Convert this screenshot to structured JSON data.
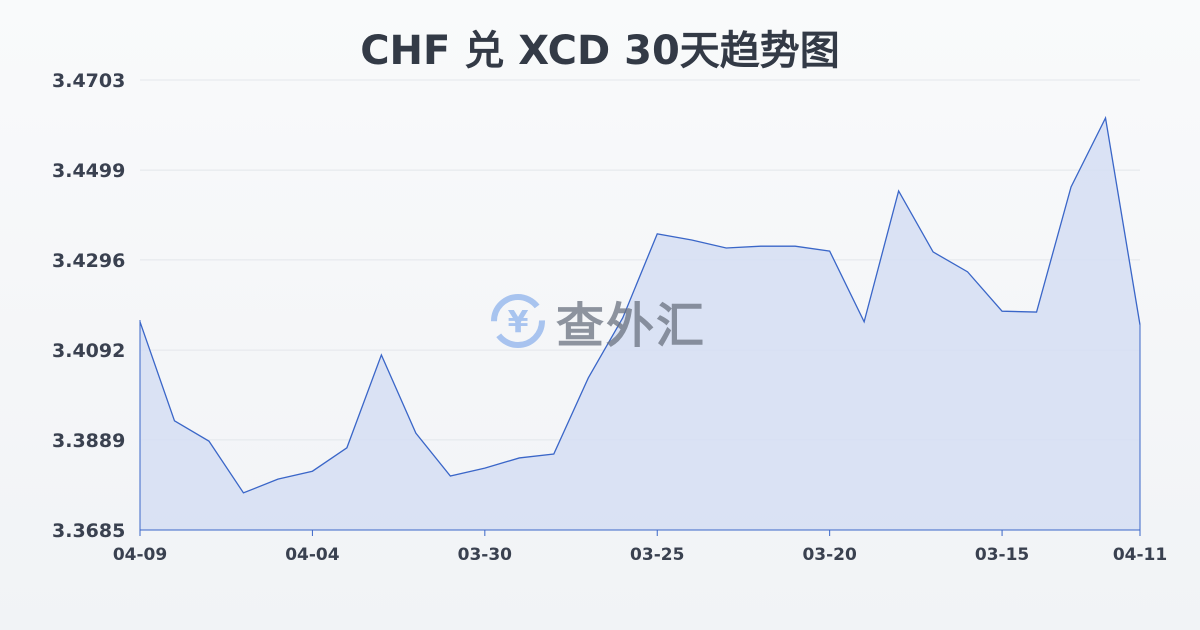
{
  "chart_data": {
    "type": "area",
    "title": "CHF 兑 XCD 30天趋势图",
    "xlabel": "",
    "ylabel": "",
    "ylim": [
      3.3685,
      3.4703
    ],
    "y_ticks": [
      "3.4703",
      "3.4499",
      "3.4296",
      "3.4092",
      "3.3889",
      "3.3685"
    ],
    "x_ticks": [
      {
        "index": 0,
        "label": "04-09"
      },
      {
        "index": 5,
        "label": "04-04"
      },
      {
        "index": 10,
        "label": "03-30"
      },
      {
        "index": 15,
        "label": "03-25"
      },
      {
        "index": 20,
        "label": "03-20"
      },
      {
        "index": 25,
        "label": "03-15"
      },
      {
        "index": 29,
        "label": "04-11"
      }
    ],
    "values": [
      3.4156,
      3.3932,
      3.3886,
      3.3769,
      3.38,
      3.3818,
      3.3871,
      3.4081,
      3.3904,
      3.3807,
      3.3825,
      3.3848,
      3.3857,
      3.4029,
      3.4165,
      3.4355,
      3.4341,
      3.4323,
      3.4327,
      3.4327,
      3.4316,
      3.4156,
      3.4452,
      3.4314,
      3.4269,
      3.418,
      3.4178,
      3.4461,
      3.4617,
      3.4149
    ],
    "grid": true,
    "colors": {
      "line": "#3a66c8",
      "fill": "#d5def3"
    }
  },
  "watermark": {
    "text": "查外汇",
    "icon": "yen-exchange-icon"
  }
}
